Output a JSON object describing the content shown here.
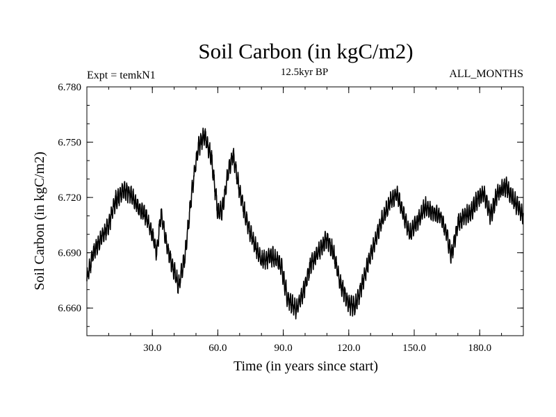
{
  "chart_data": {
    "type": "line",
    "title": "Soil Carbon (in kgC/m2)",
    "subtitle_left": "Expt = temkN1",
    "subtitle_center": "12.5kyr BP",
    "subtitle_right": "ALL_MONTHS",
    "xlabel": "Time (in years since start)",
    "ylabel": "Soil Carbon (in kgC/m2)",
    "xlim": [
      0,
      200
    ],
    "ylim": [
      6.645,
      6.78
    ],
    "xticks": [
      30,
      60,
      90,
      120,
      150,
      180
    ],
    "xtick_labels": [
      "30.0",
      "60.0",
      "90.0",
      "120.0",
      "150.0",
      "180.0"
    ],
    "yticks": [
      6.66,
      6.69,
      6.72,
      6.75,
      6.78
    ],
    "ytick_labels": [
      "6.660",
      "6.690",
      "6.720",
      "6.750",
      "6.780"
    ],
    "line_color": "#000000",
    "series": [
      {
        "name": "Soil Carbon",
        "samples_per_year": 12,
        "oscillation_amplitude": 0.004,
        "trend": [
          [
            0,
            6.676
          ],
          [
            3,
            6.69
          ],
          [
            6,
            6.697
          ],
          [
            10,
            6.705
          ],
          [
            13,
            6.718
          ],
          [
            17,
            6.724
          ],
          [
            20,
            6.722
          ],
          [
            24,
            6.714
          ],
          [
            27,
            6.71
          ],
          [
            30,
            6.7
          ],
          [
            32,
            6.69
          ],
          [
            34,
            6.712
          ],
          [
            36,
            6.697
          ],
          [
            39,
            6.684
          ],
          [
            42,
            6.672
          ],
          [
            45,
            6.688
          ],
          [
            48,
            6.722
          ],
          [
            51,
            6.747
          ],
          [
            54,
            6.754
          ],
          [
            57,
            6.742
          ],
          [
            60,
            6.712
          ],
          [
            62,
            6.713
          ],
          [
            65,
            6.735
          ],
          [
            67,
            6.743
          ],
          [
            70,
            6.724
          ],
          [
            73,
            6.708
          ],
          [
            76,
            6.697
          ],
          [
            80,
            6.686
          ],
          [
            85,
            6.688
          ],
          [
            89,
            6.683
          ],
          [
            92,
            6.665
          ],
          [
            96,
            6.659
          ],
          [
            99,
            6.668
          ],
          [
            103,
            6.685
          ],
          [
            107,
            6.692
          ],
          [
            110,
            6.698
          ],
          [
            113,
            6.69
          ],
          [
            116,
            6.674
          ],
          [
            120,
            6.662
          ],
          [
            123,
            6.661
          ],
          [
            126,
            6.672
          ],
          [
            129,
            6.685
          ],
          [
            132,
            6.696
          ],
          [
            135,
            6.707
          ],
          [
            139,
            6.718
          ],
          [
            142,
            6.722
          ],
          [
            145,
            6.711
          ],
          [
            148,
            6.7
          ],
          [
            152,
            6.708
          ],
          [
            155,
            6.715
          ],
          [
            158,
            6.712
          ],
          [
            162,
            6.71
          ],
          [
            165,
            6.7
          ],
          [
            167,
            6.688
          ],
          [
            170,
            6.706
          ],
          [
            173,
            6.71
          ],
          [
            176,
            6.712
          ],
          [
            179,
            6.719
          ],
          [
            182,
            6.722
          ],
          [
            185,
            6.71
          ],
          [
            188,
            6.722
          ],
          [
            192,
            6.726
          ],
          [
            196,
            6.718
          ],
          [
            200,
            6.71
          ]
        ]
      }
    ]
  }
}
